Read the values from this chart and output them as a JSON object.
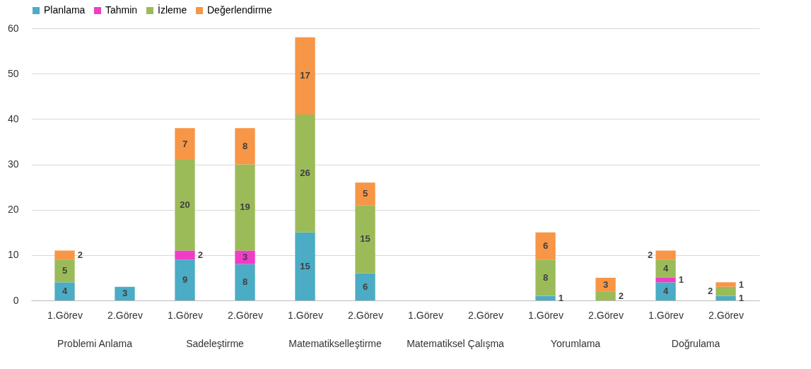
{
  "chart_data": {
    "type": "bar",
    "stacked": true,
    "categories": [
      "1.Görev",
      "2.Görev",
      "1.Görev",
      "2.Görev",
      "1.Görev",
      "2.Görev",
      "1.Görev",
      "2.Görev",
      "1.Görev",
      "2.Görev",
      "1.Görev",
      "2.Görev"
    ],
    "series": [
      {
        "name": "Planlama",
        "color": "#4bacc6",
        "values": [
          4,
          3,
          9,
          8,
          15,
          6,
          null,
          null,
          1,
          null,
          4,
          1
        ]
      },
      {
        "name": "Tahmin",
        "color": "#f03cc8",
        "values": [
          null,
          null,
          2,
          3,
          null,
          null,
          null,
          null,
          null,
          null,
          1,
          null
        ]
      },
      {
        "name": "İzleme",
        "color": "#9bbb59",
        "values": [
          5,
          null,
          20,
          19,
          26,
          15,
          null,
          null,
          8,
          2,
          4,
          2
        ]
      },
      {
        "name": "Değerlendirme",
        "color": "#f79646",
        "values": [
          2,
          null,
          7,
          8,
          17,
          5,
          null,
          null,
          6,
          3,
          2,
          1
        ]
      }
    ],
    "annotations": [
      "Problemi Anlama",
      "Sadeleştirme",
      "Matematikselleştirme",
      "Matematiksel Çalışma",
      "Yorumlama",
      "Doğrulama"
    ],
    "ylim": [
      0,
      60
    ],
    "yticks": [
      0,
      10,
      20,
      30,
      40,
      50,
      60
    ],
    "grid": "y",
    "legend": "top",
    "data_labels": true
  }
}
